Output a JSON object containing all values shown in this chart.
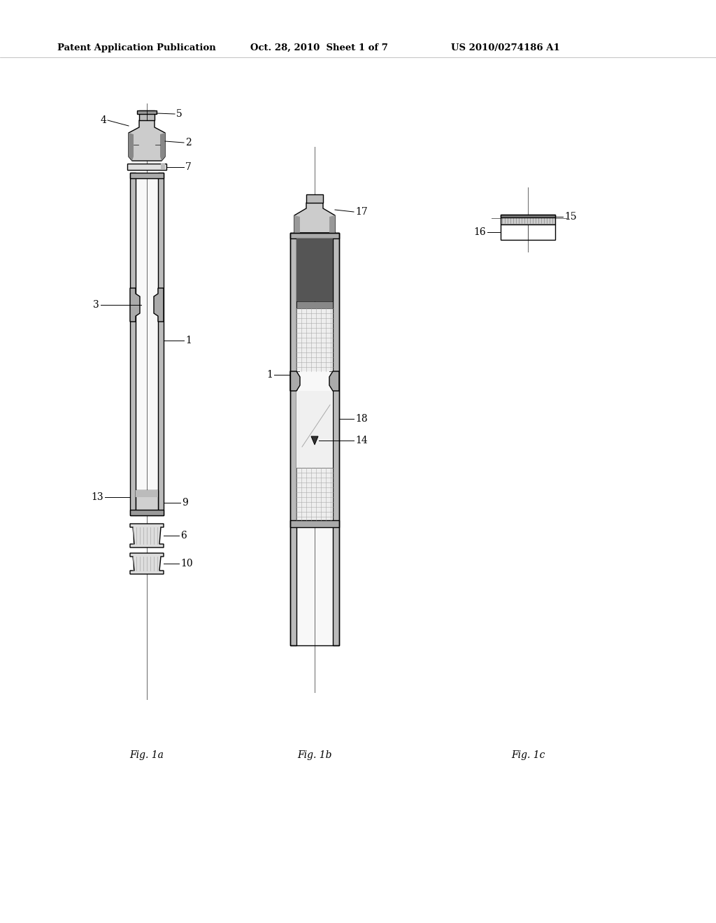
{
  "background_color": "#ffffff",
  "header_left": "Patent Application Publication",
  "header_center": "Oct. 28, 2010  Sheet 1 of 7",
  "header_right": "US 2010/0274186 A1",
  "fig1a_label": "Fig. 1a",
  "fig1b_label": "Fig. 1b",
  "fig1c_label": "Fig. 1c",
  "line_color": "#000000",
  "gray_light": "#cccccc",
  "gray_medium": "#999999",
  "gray_dark": "#555555",
  "gray_very_dark": "#333333"
}
